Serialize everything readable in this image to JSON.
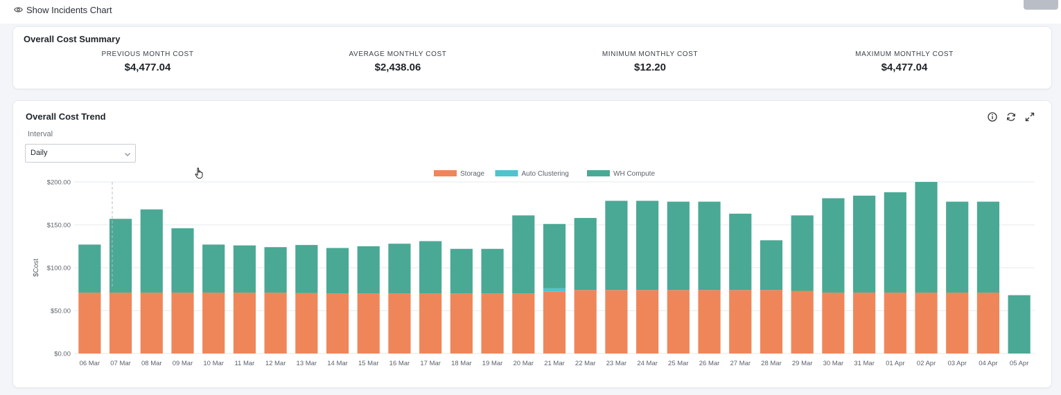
{
  "toolbar": {
    "show_incidents_label": "Show Incidents Chart"
  },
  "summary": {
    "title": "Overall Cost Summary",
    "stats": [
      {
        "label": "PREVIOUS MONTH COST",
        "value": "$4,477.04"
      },
      {
        "label": "AVERAGE MONTHLY COST",
        "value": "$2,438.06"
      },
      {
        "label": "MINIMUM MONTHLY COST",
        "value": "$12.20"
      },
      {
        "label": "MAXIMUM MONTHLY COST",
        "value": "$4,477.04"
      }
    ]
  },
  "trend": {
    "title": "Overall Cost Trend",
    "interval_label": "Interval",
    "interval_value": "Daily",
    "icons": [
      "info-icon",
      "refresh-icon",
      "expand-icon"
    ]
  },
  "chart_data": {
    "type": "bar",
    "stacked": true,
    "ylabel": "$Cost",
    "ylim": [
      0,
      200
    ],
    "yticks": [
      "$0.00",
      "$50.00",
      "$100.00",
      "$150.00",
      "$200.00"
    ],
    "yticks_values": [
      0,
      50,
      100,
      150,
      200
    ],
    "legend_position": "top",
    "grid": true,
    "categories": [
      "06 Mar",
      "07 Mar",
      "08 Mar",
      "09 Mar",
      "10 Mar",
      "11 Mar",
      "12 Mar",
      "13 Mar",
      "14 Mar",
      "15 Mar",
      "16 Mar",
      "17 Mar",
      "18 Mar",
      "19 Mar",
      "20 Mar",
      "21 Mar",
      "22 Mar",
      "23 Mar",
      "24 Mar",
      "25 Mar",
      "26 Mar",
      "27 Mar",
      "28 Mar",
      "29 Mar",
      "30 Mar",
      "31 Mar",
      "01 Apr",
      "02 Apr",
      "03 Apr",
      "04 Apr",
      "05 Apr"
    ],
    "series": [
      {
        "name": "Storage",
        "color": "#ef8659",
        "values": [
          71,
          71,
          71,
          71,
          71,
          71,
          71,
          70.5,
          70,
          70,
          70,
          70,
          70,
          70,
          70,
          72,
          74,
          74,
          74,
          74,
          74,
          74,
          74,
          73,
          71,
          71,
          71,
          71,
          71,
          71,
          0
        ]
      },
      {
        "name": "Auto Clustering",
        "color": "#4fc3cf",
        "values": [
          0,
          0,
          0,
          0,
          0,
          0,
          0,
          0,
          0,
          0,
          0,
          0,
          0,
          0,
          0,
          4,
          0,
          0,
          0,
          0,
          0,
          0,
          0,
          0,
          0,
          0,
          0,
          0,
          0,
          0,
          0
        ]
      },
      {
        "name": "WH Compute",
        "color": "#4aa994",
        "values": [
          56,
          86,
          97,
          75,
          56,
          55,
          53,
          56,
          53,
          55,
          58,
          61,
          52,
          52,
          91,
          75,
          84,
          104,
          104,
          103,
          103,
          89,
          58,
          88,
          110,
          113,
          117,
          129,
          106,
          106,
          68
        ]
      }
    ]
  }
}
